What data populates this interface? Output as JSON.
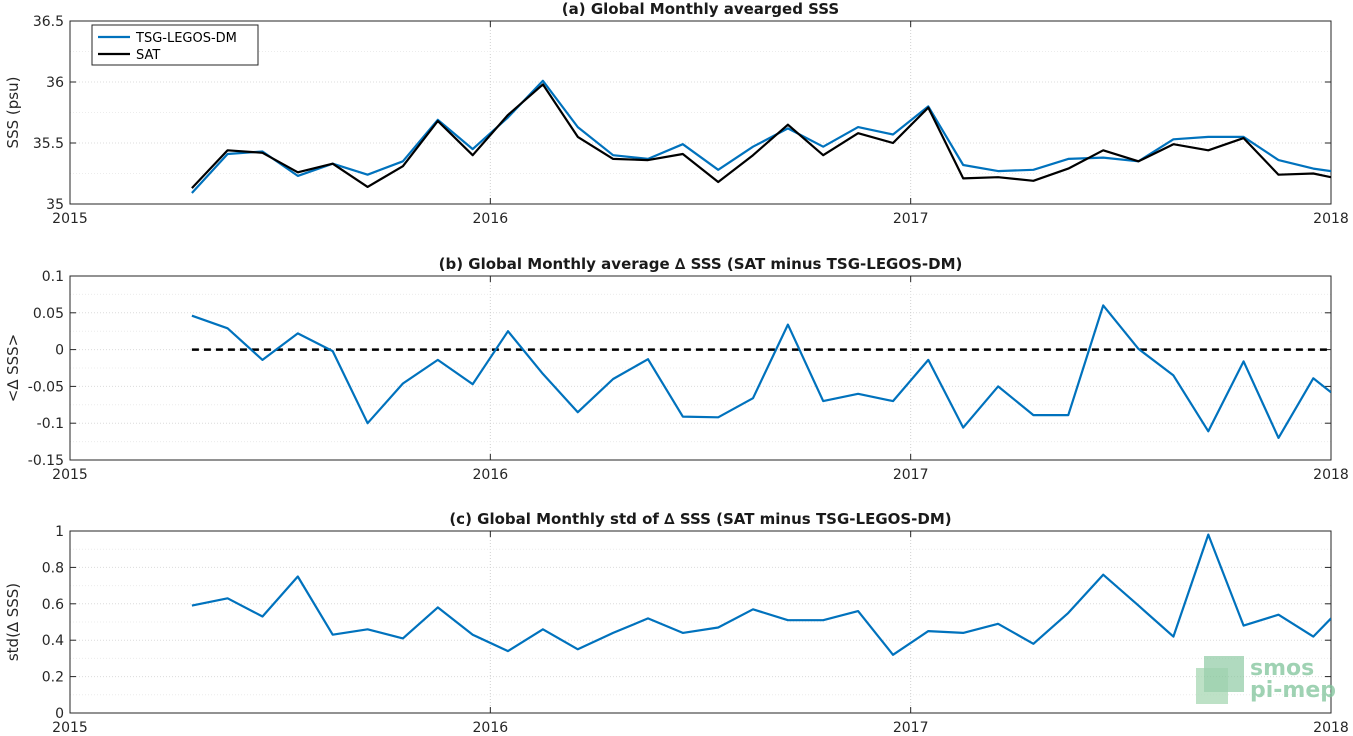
{
  "chart_data": [
    {
      "type": "line",
      "title": "(a) Global Monthly avearged SSS",
      "ylabel": "SSS (psu)",
      "xlabel": "",
      "xlim": [
        2015,
        2018
      ],
      "ylim": [
        35,
        36.5
      ],
      "xticks": [
        2015,
        2016,
        2017,
        2018
      ],
      "yticks": [
        35,
        35.5,
        36,
        36.5
      ],
      "ytick_labels": [
        "35",
        "35.5",
        "36",
        "36.5"
      ],
      "grid": true,
      "legend": "top-left",
      "x": [
        2015.29,
        2015.375,
        2015.458,
        2015.542,
        2015.625,
        2015.708,
        2015.792,
        2015.875,
        2015.958,
        2016.042,
        2016.125,
        2016.208,
        2016.292,
        2016.375,
        2016.458,
        2016.542,
        2016.625,
        2016.708,
        2016.792,
        2016.875,
        2016.958,
        2017.042,
        2017.125,
        2017.208,
        2017.292,
        2017.375,
        2017.458,
        2017.542,
        2017.625,
        2017.708,
        2017.792,
        2017.875,
        2017.958,
        2018.0
      ],
      "series": [
        {
          "name": "TSG-LEGOS-DM",
          "color": "#0072bd",
          "values": [
            35.09,
            35.41,
            35.43,
            35.23,
            35.33,
            35.24,
            35.35,
            35.69,
            35.45,
            35.71,
            36.01,
            35.63,
            35.4,
            35.37,
            35.49,
            35.28,
            35.47,
            35.62,
            35.47,
            35.63,
            35.57,
            35.8,
            35.32,
            35.27,
            35.28,
            35.37,
            35.38,
            35.35,
            35.53,
            35.55,
            35.55,
            35.36,
            35.29,
            35.27
          ]
        },
        {
          "name": "SAT",
          "color": "#000000",
          "values": [
            35.13,
            35.44,
            35.42,
            35.26,
            35.33,
            35.14,
            35.31,
            35.68,
            35.4,
            35.73,
            35.98,
            35.55,
            35.37,
            35.36,
            35.41,
            35.18,
            35.4,
            35.65,
            35.4,
            35.58,
            35.5,
            35.79,
            35.21,
            35.22,
            35.19,
            35.29,
            35.44,
            35.35,
            35.49,
            35.44,
            35.54,
            35.24,
            35.25,
            35.22
          ]
        }
      ]
    },
    {
      "type": "line",
      "title": "(b) Global Monthly average ∆ SSS (SAT minus TSG-LEGOS-DM)",
      "ylabel": "<∆ SSS>",
      "xlabel": "",
      "xlim": [
        2015,
        2018
      ],
      "ylim": [
        -0.15,
        0.1
      ],
      "xticks": [
        2015,
        2016,
        2017,
        2018
      ],
      "yticks": [
        -0.15,
        -0.1,
        -0.05,
        0,
        0.05,
        0.1
      ],
      "ytick_labels": [
        "-0.15",
        "-0.1",
        "-0.05",
        "0",
        "0.05",
        "0.1"
      ],
      "grid": true,
      "reference_line": {
        "y": 0,
        "style": "dashed",
        "color": "#000000"
      },
      "x": [
        2015.29,
        2015.375,
        2015.458,
        2015.542,
        2015.625,
        2015.708,
        2015.792,
        2015.875,
        2015.958,
        2016.042,
        2016.125,
        2016.208,
        2016.292,
        2016.375,
        2016.458,
        2016.542,
        2016.625,
        2016.708,
        2016.792,
        2016.875,
        2016.958,
        2017.042,
        2017.125,
        2017.208,
        2017.292,
        2017.375,
        2017.458,
        2017.542,
        2017.625,
        2017.708,
        2017.792,
        2017.875,
        2017.958,
        2018.0
      ],
      "series": [
        {
          "color": "#0072bd",
          "values": [
            0.046,
            0.029,
            -0.014,
            0.022,
            -0.002,
            -0.1,
            -0.046,
            -0.014,
            -0.047,
            0.025,
            -0.033,
            -0.085,
            -0.04,
            -0.013,
            -0.091,
            -0.092,
            -0.066,
            0.034,
            -0.07,
            -0.06,
            -0.07,
            -0.014,
            -0.106,
            -0.05,
            -0.089,
            -0.089,
            0.06,
            0.001,
            -0.035,
            -0.111,
            -0.016,
            -0.12,
            -0.039,
            -0.058
          ]
        }
      ]
    },
    {
      "type": "line",
      "title": "(c) Global Monthly std of ∆ SSS (SAT minus TSG-LEGOS-DM)",
      "ylabel": "std(∆ SSS)",
      "xlabel": "",
      "xlim": [
        2015,
        2018
      ],
      "ylim": [
        0,
        1
      ],
      "xticks": [
        2015,
        2016,
        2017,
        2018
      ],
      "yticks": [
        0,
        0.2,
        0.4,
        0.6,
        0.8,
        1
      ],
      "ytick_labels": [
        "0",
        "0.2",
        "0.4",
        "0.6",
        "0.8",
        "1"
      ],
      "grid": true,
      "x": [
        2015.29,
        2015.375,
        2015.458,
        2015.542,
        2015.625,
        2015.708,
        2015.792,
        2015.875,
        2015.958,
        2016.042,
        2016.125,
        2016.208,
        2016.292,
        2016.375,
        2016.458,
        2016.542,
        2016.625,
        2016.708,
        2016.792,
        2016.875,
        2016.958,
        2017.042,
        2017.125,
        2017.208,
        2017.292,
        2017.375,
        2017.458,
        2017.542,
        2017.625,
        2017.708,
        2017.792,
        2017.875,
        2017.958,
        2018.0
      ],
      "series": [
        {
          "color": "#0072bd",
          "values": [
            0.59,
            0.63,
            0.53,
            0.75,
            0.43,
            0.46,
            0.41,
            0.58,
            0.43,
            0.34,
            0.46,
            0.35,
            0.44,
            0.52,
            0.44,
            0.47,
            0.57,
            0.51,
            0.51,
            0.56,
            0.32,
            0.45,
            0.44,
            0.49,
            0.38,
            0.55,
            0.76,
            0.59,
            0.42,
            0.98,
            0.48,
            0.54,
            0.42,
            0.52
          ]
        }
      ]
    }
  ],
  "logo": {
    "line1": "smos",
    "line2": "pi-mep"
  }
}
